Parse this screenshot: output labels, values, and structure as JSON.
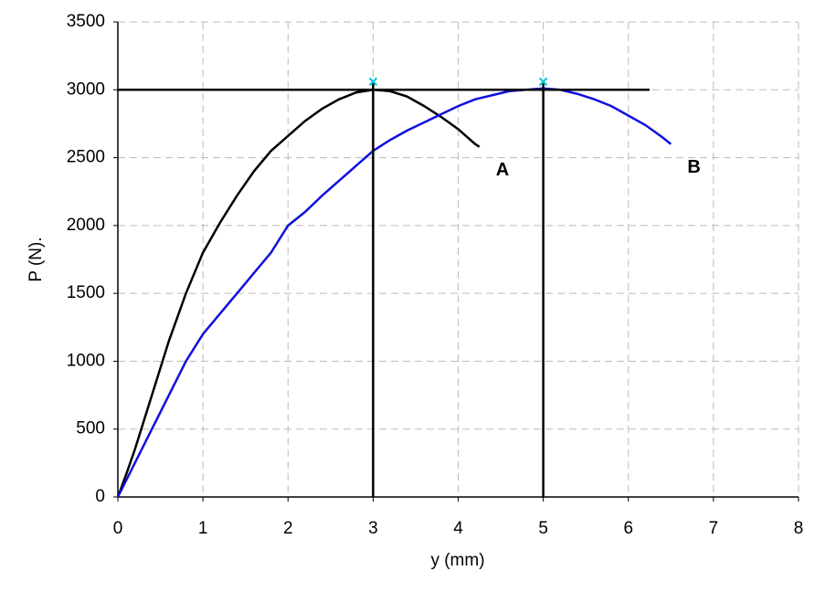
{
  "chart_data": {
    "type": "line",
    "x_label": "y (mm)",
    "y_label": "P (N).",
    "xlim": [
      0,
      8
    ],
    "xticks": [
      0,
      1,
      2,
      3,
      4,
      5,
      6,
      7,
      8
    ],
    "ylim": [
      0,
      3500
    ],
    "yticks": [
      0,
      500,
      1000,
      1500,
      2000,
      2500,
      3000,
      3500
    ],
    "grid": true,
    "series": [
      {
        "name": "A",
        "color": "#000000",
        "x": [
          0,
          0.1,
          0.2,
          0.4,
          0.6,
          0.8,
          1.0,
          1.2,
          1.4,
          1.6,
          1.8,
          2.0,
          2.2,
          2.4,
          2.6,
          2.8,
          3.0,
          3.2,
          3.4,
          3.6,
          3.8,
          4.0,
          4.2,
          4.25
        ],
        "values": [
          0,
          170,
          350,
          750,
          1150,
          1500,
          1800,
          2020,
          2220,
          2400,
          2550,
          2660,
          2770,
          2860,
          2930,
          2980,
          3000,
          2990,
          2950,
          2880,
          2800,
          2710,
          2600,
          2580
        ]
      },
      {
        "name": "B",
        "color": "#1010e0",
        "x": [
          0,
          0.2,
          0.4,
          0.6,
          0.8,
          1.0,
          1.2,
          1.4,
          1.6,
          1.8,
          2.0,
          2.2,
          2.4,
          2.6,
          2.8,
          3.0,
          3.2,
          3.4,
          3.6,
          3.8,
          4.0,
          4.2,
          4.4,
          4.6,
          4.8,
          5.0,
          5.2,
          5.4,
          5.6,
          5.8,
          6.0,
          6.2,
          6.4,
          6.5
        ],
        "values": [
          0,
          250,
          500,
          750,
          1000,
          1200,
          1350,
          1500,
          1650,
          1800,
          2000,
          2100,
          2220,
          2330,
          2440,
          2550,
          2630,
          2700,
          2760,
          2820,
          2880,
          2930,
          2960,
          2990,
          3000,
          3010,
          3000,
          2970,
          2930,
          2880,
          2810,
          2740,
          2650,
          2600
        ]
      }
    ],
    "hline": {
      "y": 3000,
      "x": [
        0,
        6.25
      ]
    },
    "vlines": {
      "x": [
        3,
        5
      ],
      "y": [
        0,
        3050
      ]
    },
    "peak_markers": {
      "color": "#00c8d8",
      "x": [
        3,
        5
      ],
      "y": [
        3060,
        3060
      ]
    }
  }
}
